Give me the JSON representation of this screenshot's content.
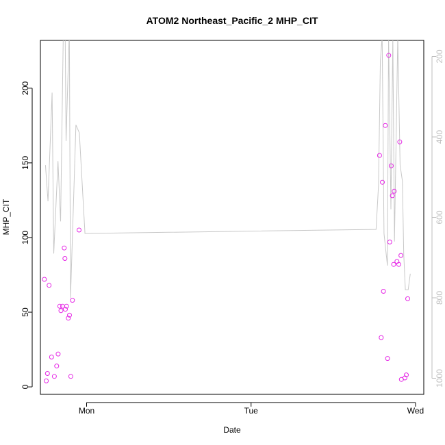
{
  "chart_data": {
    "type": "scatter",
    "title": "ATOM2 Northeast_Pacific_2 MHP_CIT",
    "xlabel": "Date",
    "ylabel": "MHP_CIT",
    "x_ticks": [
      "Mon",
      "Tue",
      "Wed"
    ],
    "y_ticks": [
      0,
      50,
      100,
      150,
      200
    ],
    "y_right_ticks": [
      200,
      400,
      600,
      800,
      1000
    ],
    "ylim": [
      -5,
      232
    ],
    "y_right_lim": [
      1040,
      160
    ],
    "x_unit": "days (Mon = 1, Tue = 2, Wed = 3)",
    "xlim": [
      0.719,
      3.05
    ],
    "grid": false,
    "colors": {
      "points": "#e526e5",
      "line": "#c8c8c8",
      "right_axis": "#bdbdbd"
    },
    "series": [
      {
        "kind": "points",
        "axis": "left",
        "x": [
          0.743,
          0.755,
          0.762,
          0.772,
          0.787,
          0.804,
          0.818,
          0.827,
          0.837,
          0.844,
          0.854,
          0.864,
          0.868,
          0.871,
          0.878,
          0.889,
          0.896,
          0.904,
          0.914,
          0.954,
          2.781,
          2.791,
          2.798,
          2.805,
          2.816,
          2.83,
          2.837,
          2.843,
          2.852,
          2.859,
          2.867,
          2.87,
          2.887,
          2.898,
          2.904,
          2.911,
          2.914,
          2.935,
          2.944,
          2.952
        ],
        "y": [
          72,
          4,
          9,
          68,
          20,
          7,
          14,
          22,
          54,
          51,
          54,
          93,
          86,
          52,
          54,
          46,
          48,
          7,
          58,
          105,
          155,
          33,
          137,
          64,
          175,
          19,
          222,
          97,
          148,
          128,
          82,
          131,
          84,
          82,
          164,
          88,
          5,
          6,
          8,
          59
        ]
      },
      {
        "kind": "line",
        "axis": "right",
        "x": [
          0.75,
          0.765,
          0.79,
          0.8,
          0.826,
          0.842,
          0.858,
          0.87,
          0.875,
          0.895,
          0.902,
          0.935,
          0.956,
          0.99,
          2.76,
          2.775,
          2.786,
          2.797,
          2.808,
          2.829,
          2.836,
          2.85,
          2.862,
          2.872,
          2.892,
          2.906,
          2.92,
          2.928,
          2.938,
          2.955,
          2.968
        ],
        "y": [
          470,
          560,
          290,
          690,
          460,
          610,
          150,
          160,
          410,
          130,
          800,
          370,
          390,
          640,
          630,
          520,
          210,
          150,
          640,
          720,
          150,
          580,
          150,
          660,
          150,
          470,
          510,
          690,
          780,
          780,
          740
        ]
      }
    ]
  }
}
